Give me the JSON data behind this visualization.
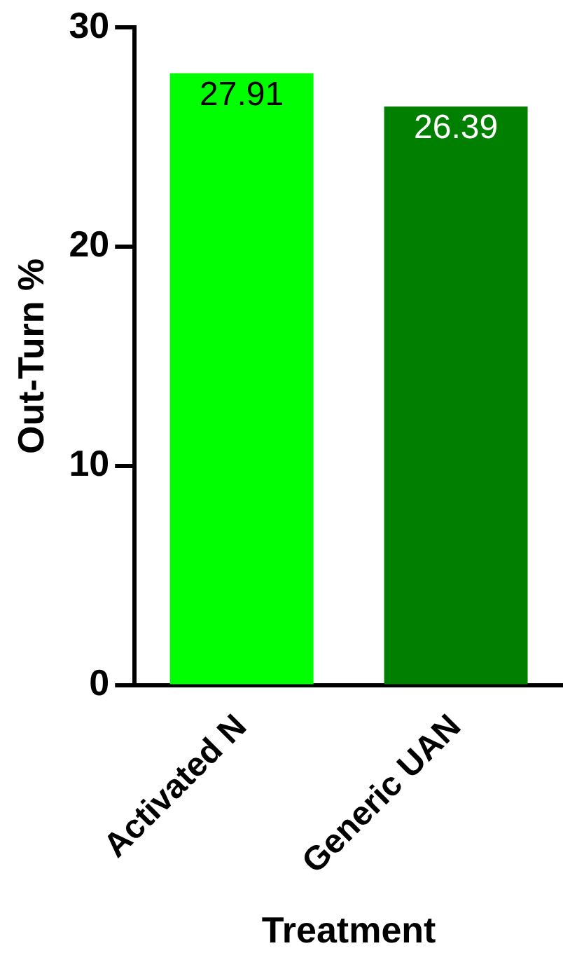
{
  "chart_data": {
    "type": "bar",
    "xlabel": "Treatment",
    "ylabel": "Out-Turn %",
    "categories": [
      "Activated N",
      "Generic UAN"
    ],
    "values": [
      27.91,
      26.39
    ],
    "colors": [
      "#00ff00",
      "#007f00"
    ],
    "ylim": [
      0,
      30
    ],
    "yticks": [
      0,
      10,
      20,
      30
    ],
    "data_labels": true,
    "grid": false,
    "legend": false
  }
}
